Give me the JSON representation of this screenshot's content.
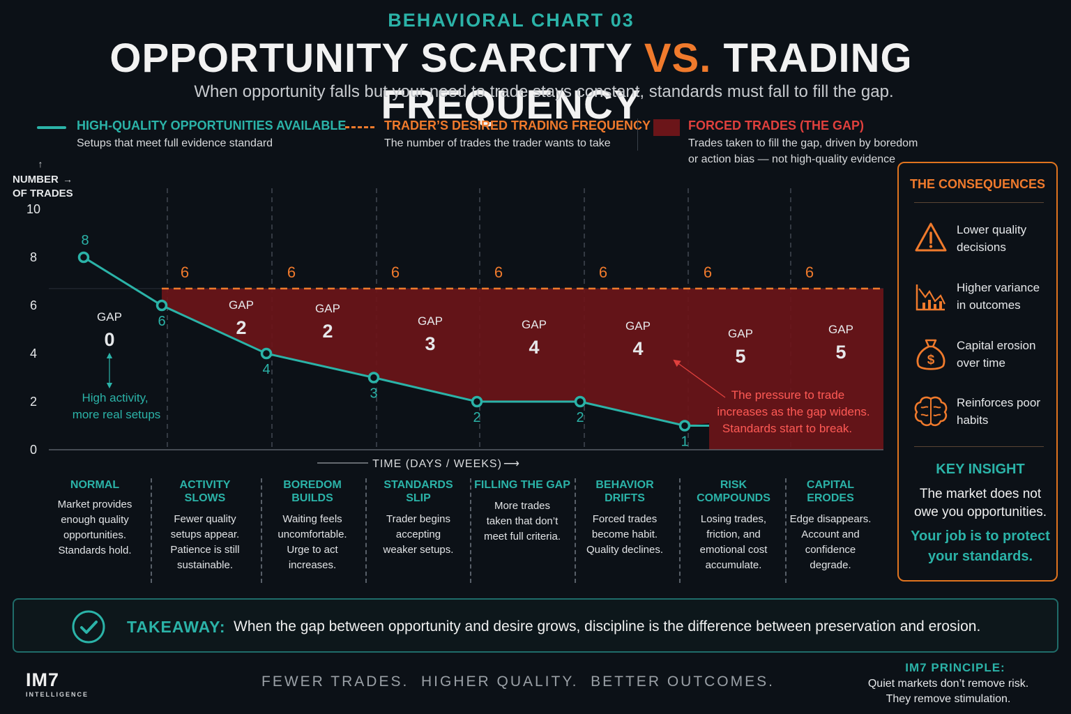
{
  "header": {
    "kicker": "BEHAVIORAL CHART 03",
    "title_part1": "OPPORTUNITY SCARCITY ",
    "title_vs": "VS.",
    "title_part2": " TRADING FREQUENCY",
    "subtitle": "When opportunity falls but your need to trade stays constant, standards must fall to fill the gap."
  },
  "legend": [
    {
      "title": "HIGH-QUALITY OPPORTUNITIES AVAILABLE",
      "desc": "Setups that meet full evidence standard",
      "color": "#2bb3a8"
    },
    {
      "title": "TRADER’S DESIRED TRADING FREQUENCY",
      "desc": "The number of trades the trader wants to take",
      "color": "#f07a2c"
    },
    {
      "title": "FORCED TRADES (THE GAP)",
      "desc": "Trades taken to fill the gap, driven by boredom or action bias — not high-quality evidence",
      "desc_line1": "Trades taken to fill the gap, driven by boredom",
      "desc_line2": "or action bias — not high-quality evidence",
      "color": "#e0403d"
    }
  ],
  "chart_data": {
    "type": "line",
    "ylabel": "NUMBER OF TRADES",
    "ylabel_line1": "NUMBER",
    "ylabel_line2": "OF TRADES",
    "xlabel": "TIME (DAYS / WEEKS)",
    "ylim": [
      0,
      10
    ],
    "yticks": [
      "0",
      "2",
      "4",
      "6",
      "8",
      "10"
    ],
    "grid": "vertical dashed",
    "series": [
      {
        "name": "HIGH-QUALITY OPPORTUNITIES AVAILABLE",
        "x": [
          0,
          1,
          2,
          3,
          4,
          5,
          6
        ],
        "values": [
          8,
          6,
          4,
          3,
          2,
          2,
          1
        ],
        "labels": [
          "8",
          "6",
          "4",
          "3",
          "2",
          "2",
          "1"
        ]
      },
      {
        "name": "TRADER’S DESIRED TRADING FREQUENCY",
        "x": [
          1,
          2,
          3,
          4,
          5,
          6,
          7
        ],
        "values": [
          6,
          6,
          6,
          6,
          6,
          6,
          6
        ],
        "labels": [
          "6",
          "6",
          "6",
          "6",
          "6",
          "6",
          "6"
        ]
      }
    ],
    "gaps": [
      {
        "label": "GAP",
        "value": "0"
      },
      {
        "label": "GAP",
        "value": "2"
      },
      {
        "label": "GAP",
        "value": "2"
      },
      {
        "label": "GAP",
        "value": "3"
      },
      {
        "label": "GAP",
        "value": "4"
      },
      {
        "label": "GAP",
        "value": "4"
      },
      {
        "label": "GAP",
        "value": "5"
      },
      {
        "label": "GAP",
        "value": "5"
      }
    ],
    "annotations": {
      "high_activity_line1": "High activity,",
      "high_activity_line2": "more real setups",
      "pressure_line1": "The pressure to trade",
      "pressure_line2": "increases as the gap widens.",
      "pressure_line3": "Standards start to break."
    }
  },
  "phases": [
    {
      "title": "NORMAL",
      "lines": [
        "Market provides",
        "enough quality",
        "opportunities.",
        "Standards hold."
      ]
    },
    {
      "title": "ACTIVITY SLOWS",
      "lines": [
        "Fewer quality",
        "setups appear.",
        "Patience is still",
        "sustainable."
      ]
    },
    {
      "title": "BOREDOM BUILDS",
      "lines": [
        "Waiting feels",
        "uncomfortable.",
        "Urge to act",
        "increases."
      ]
    },
    {
      "title": "STANDARDS SLIP",
      "lines": [
        "Trader begins",
        "accepting",
        "weaker setups."
      ]
    },
    {
      "title": "FILLING THE GAP",
      "lines": [
        "More trades",
        "taken that don’t",
        "meet full criteria."
      ]
    },
    {
      "title": "BEHAVIOR DRIFTS",
      "lines": [
        "Forced trades",
        "become habit.",
        "Quality declines."
      ]
    },
    {
      "title": "RISK COMPOUNDS",
      "lines": [
        "Losing trades,",
        "friction, and",
        "emotional cost",
        "accumulate."
      ]
    },
    {
      "title": "CAPITAL ERODES",
      "lines": [
        "Edge disappears.",
        "Account and",
        "confidence",
        "degrade."
      ]
    }
  ],
  "consequences": {
    "title": "THE CONSEQUENCES",
    "items": [
      {
        "icon": "warning-icon",
        "line1": "Lower quality",
        "line2": "decisions"
      },
      {
        "icon": "chart-variance-icon",
        "line1": "Higher variance",
        "line2": "in outcomes"
      },
      {
        "icon": "money-bag-icon",
        "line1": "Capital erosion",
        "line2": "over time"
      },
      {
        "icon": "brain-icon",
        "line1": "Reinforces poor",
        "line2": "habits"
      }
    ],
    "insight_title": "KEY INSIGHT",
    "insight_line1": "The market does not",
    "insight_line2": "owe you opportunities.",
    "insight_em1": "Your job is to protect",
    "insight_em2": "your standards."
  },
  "takeaway": {
    "label": "TAKEAWAY:",
    "text": "When the gap between opportunity and desire grows, discipline is the difference between preservation and erosion."
  },
  "footer": {
    "tagline": "FEWER TRADES.  HIGHER QUALITY.  BETTER OUTCOMES.",
    "logo": "IM7",
    "logo_sub": "INTELLIGENCE",
    "principle_title": "IM7 PRINCIPLE:",
    "principle_line1": "Quiet markets don’t remove risk.",
    "principle_line2": "They remove stimulation."
  },
  "colors": {
    "teal": "#2bb3a8",
    "orange": "#f07a2c",
    "gap_fill": "#6b1519",
    "gap_text": "#ff5a55",
    "background": "#0c1117"
  }
}
